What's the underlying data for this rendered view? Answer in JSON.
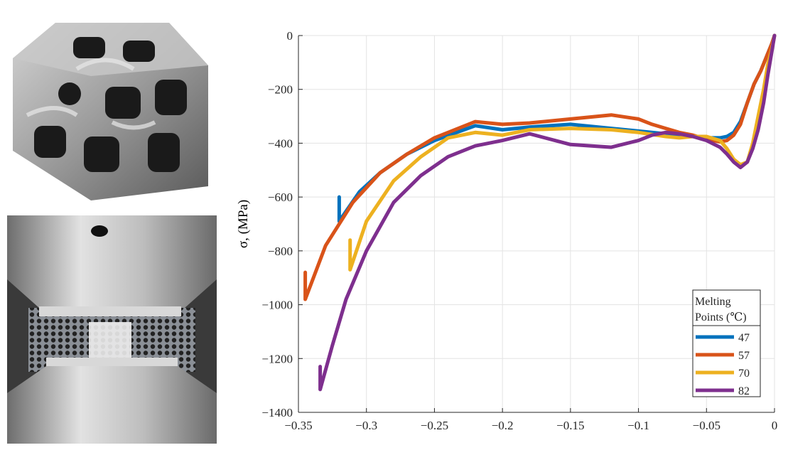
{
  "photos": {
    "top": "3D-printed metal lattice cube specimen",
    "bottom": "Specimen between compression platens"
  },
  "chart_data": {
    "type": "line",
    "ylabel": "σ, (MPa)",
    "xlabel": "",
    "xlim": [
      -0.35,
      0
    ],
    "ylim": [
      -1400,
      0
    ],
    "xticks": [
      -0.35,
      -0.3,
      -0.25,
      -0.2,
      -0.15,
      -0.1,
      -0.05,
      0
    ],
    "xtick_labels": [
      "−0.35",
      "−0.3",
      "−0.25",
      "−0.2",
      "−0.15",
      "−0.1",
      "−0.05",
      "0"
    ],
    "yticks": [
      0,
      -200,
      -400,
      -600,
      -800,
      -1000,
      -1200,
      -1400
    ],
    "ytick_labels": [
      "0",
      "−200",
      "−400",
      "−600",
      "−800",
      "−1000",
      "−1200",
      "−1400"
    ],
    "grid": true,
    "legend": {
      "title_lines": [
        "Melting",
        "Points (℃)"
      ],
      "placement": "bottom-right"
    },
    "series": [
      {
        "name": "47",
        "color": "#0072BD",
        "x": [
          0,
          -0.002,
          -0.006,
          -0.01,
          -0.015,
          -0.02,
          -0.025,
          -0.03,
          -0.035,
          -0.04,
          -0.05,
          -0.06,
          -0.07,
          -0.08,
          -0.1,
          -0.12,
          -0.15,
          -0.18,
          -0.2,
          -0.22,
          -0.25,
          -0.27,
          -0.29,
          -0.305,
          -0.32,
          -0.32
        ],
        "y": [
          0,
          -30,
          -80,
          -130,
          -180,
          -250,
          -320,
          -360,
          -375,
          -380,
          -380,
          -375,
          -370,
          -365,
          -355,
          -345,
          -330,
          -340,
          -350,
          -335,
          -390,
          -440,
          -510,
          -580,
          -690,
          -600
        ]
      },
      {
        "name": "57",
        "color": "#D95319",
        "x": [
          0,
          -0.002,
          -0.006,
          -0.01,
          -0.015,
          -0.02,
          -0.025,
          -0.03,
          -0.035,
          -0.04,
          -0.05,
          -0.06,
          -0.07,
          -0.08,
          -0.09,
          -0.1,
          -0.12,
          -0.15,
          -0.18,
          -0.2,
          -0.22,
          -0.25,
          -0.27,
          -0.29,
          -0.31,
          -0.33,
          -0.345,
          -0.345
        ],
        "y": [
          0,
          -30,
          -80,
          -130,
          -180,
          -250,
          -330,
          -370,
          -390,
          -395,
          -385,
          -370,
          -360,
          -345,
          -330,
          -310,
          -295,
          -310,
          -325,
          -330,
          -320,
          -380,
          -440,
          -510,
          -620,
          -780,
          -980,
          -880
        ]
      },
      {
        "name": "70",
        "color": "#EDB120",
        "x": [
          0,
          -0.002,
          -0.005,
          -0.008,
          -0.012,
          -0.016,
          -0.02,
          -0.025,
          -0.03,
          -0.035,
          -0.04,
          -0.05,
          -0.06,
          -0.07,
          -0.08,
          -0.1,
          -0.12,
          -0.15,
          -0.18,
          -0.2,
          -0.22,
          -0.24,
          -0.26,
          -0.28,
          -0.3,
          -0.312,
          -0.312
        ],
        "y": [
          0,
          -50,
          -110,
          -200,
          -300,
          -400,
          -470,
          -480,
          -460,
          -420,
          -390,
          -375,
          -375,
          -380,
          -375,
          -360,
          -350,
          -345,
          -350,
          -370,
          -360,
          -380,
          -450,
          -540,
          -690,
          -870,
          -760
        ]
      },
      {
        "name": "82",
        "color": "#7E2F8E",
        "x": [
          0,
          -0.002,
          -0.005,
          -0.008,
          -0.012,
          -0.016,
          -0.02,
          -0.025,
          -0.03,
          -0.035,
          -0.04,
          -0.05,
          -0.06,
          -0.07,
          -0.08,
          -0.09,
          -0.1,
          -0.12,
          -0.15,
          -0.18,
          -0.2,
          -0.22,
          -0.24,
          -0.26,
          -0.28,
          -0.3,
          -0.315,
          -0.325,
          -0.334,
          -0.334
        ],
        "y": [
          0,
          -60,
          -150,
          -250,
          -350,
          -420,
          -470,
          -490,
          -470,
          -440,
          -415,
          -390,
          -375,
          -365,
          -360,
          -370,
          -390,
          -415,
          -405,
          -365,
          -390,
          -410,
          -450,
          -520,
          -620,
          -800,
          -980,
          -1150,
          -1315,
          -1230
        ]
      }
    ]
  }
}
